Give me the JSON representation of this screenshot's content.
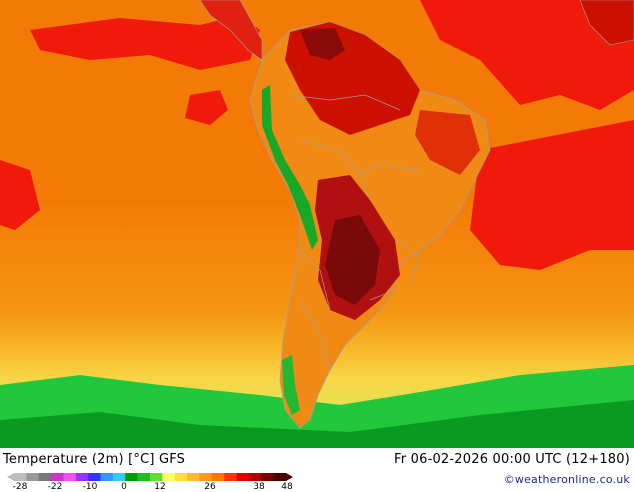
{
  "map": {
    "title": "Temperature (2m) [°C] GFS",
    "valid_time": "Fr 06-02-2026 00:00 UTC (12+180)",
    "credit": "©weatheronline.co.uk"
  },
  "legend": {
    "ticks": [
      "-28",
      "-22",
      "-10",
      "0",
      "12",
      "26",
      "38",
      "48"
    ],
    "colors": [
      "#bdbdbd",
      "#999999",
      "#777777",
      "#cc33cc",
      "#ee55ee",
      "#9933ff",
      "#3333ff",
      "#3399ff",
      "#33ccff",
      "#009900",
      "#22bb22",
      "#66dd33",
      "#ffff66",
      "#ffdd44",
      "#ffbb33",
      "#ff9922",
      "#ff7700",
      "#ff3300",
      "#e00000",
      "#b00000",
      "#7a0000",
      "#4a0000"
    ]
  },
  "colors": {
    "ocean_warm": "#f47a08",
    "ocean_hot": "#f01a0a",
    "ocean_mild": "#f8a020",
    "ocean_cool": "#f8d040",
    "ocean_cold": "#2ad84a",
    "land_hot": "#cc1000",
    "land_very_hot": "#8a0a0a",
    "andes": "#10a020",
    "border": "#a0a0a0"
  }
}
